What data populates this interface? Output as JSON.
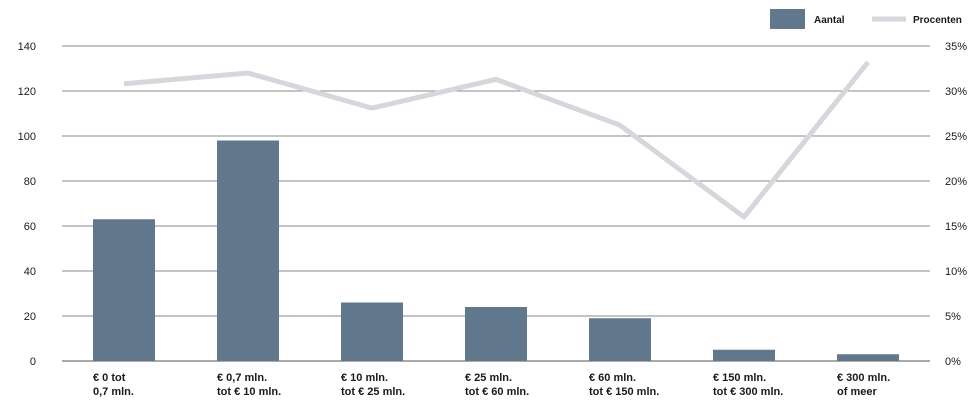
{
  "chart_data": {
    "type": "bar",
    "categories": [
      [
        "€ 0 tot",
        "0,7 mln."
      ],
      [
        "€ 0,7 mln.",
        "tot € 10 mln."
      ],
      [
        "€ 10 mln.",
        "tot € 25 mln."
      ],
      [
        "€ 25 mln.",
        "tot € 60 mln."
      ],
      [
        "€ 60 mln.",
        "tot € 150 mln."
      ],
      [
        "€ 150 mln.",
        "tot € 300 mln."
      ],
      [
        "€ 300 mln.",
        "of meer"
      ]
    ],
    "series": [
      {
        "name": "Aantal",
        "type": "bar",
        "axis": "left",
        "color": "#61778b",
        "values": [
          63,
          98,
          26,
          24,
          19,
          5,
          3
        ]
      },
      {
        "name": "Procenten",
        "type": "line",
        "axis": "right",
        "color": "#d4d7dc",
        "values": [
          30.8,
          32,
          28.1,
          31.3,
          26.2,
          16,
          33.2
        ]
      }
    ],
    "y_left": {
      "min": 0,
      "max": 140,
      "ticks": [
        "0",
        "20",
        "40",
        "60",
        "80",
        "100",
        "120",
        "140"
      ]
    },
    "y_right": {
      "min": 0,
      "max": 35,
      "ticks": [
        "0%",
        "5%",
        "10%",
        "15%",
        "20%",
        "25%",
        "30%",
        "35%"
      ]
    },
    "grid": true,
    "legend_position": "top-right"
  }
}
